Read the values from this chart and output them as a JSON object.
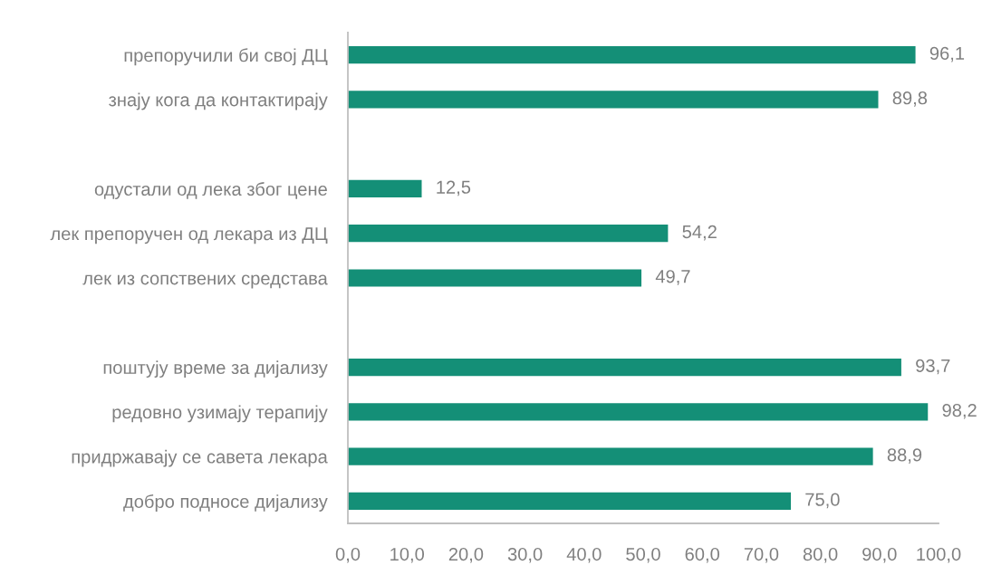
{
  "chart_data": {
    "type": "bar",
    "orientation": "horizontal",
    "categories": [
      "препоручили би свој ДЦ",
      "знају кога да контактирају",
      null,
      "одустали од лека због цене",
      "лек препоручен од лекара из ДЦ",
      "лек из сопствених средстава",
      null,
      "поштују време за дијализу",
      "редовно узимају терапију",
      "придржавају се савета лекара",
      "добро подносе дијализу"
    ],
    "values": [
      96.1,
      89.8,
      null,
      12.5,
      54.2,
      49.7,
      null,
      93.7,
      98.2,
      88.9,
      75.0
    ],
    "value_labels": [
      "96,1",
      "89,8",
      null,
      "12,5",
      "54,2",
      "49,7",
      null,
      "93,7",
      "98,2",
      "88,9",
      "75,0"
    ],
    "color": "#148f77",
    "xlim": [
      0,
      100
    ],
    "xticks": [
      {
        "value": 0,
        "label": "0,0"
      },
      {
        "value": 10,
        "label": "10,0"
      },
      {
        "value": 20,
        "label": "20,0"
      },
      {
        "value": 30,
        "label": "30,0"
      },
      {
        "value": 40,
        "label": "40,0"
      },
      {
        "value": 50,
        "label": "50,0"
      },
      {
        "value": 60,
        "label": "60,0"
      },
      {
        "value": 70,
        "label": "70,0"
      },
      {
        "value": 80,
        "label": "80,0"
      },
      {
        "value": 90,
        "label": "90,0"
      },
      {
        "value": 100,
        "label": "100,0"
      }
    ]
  }
}
